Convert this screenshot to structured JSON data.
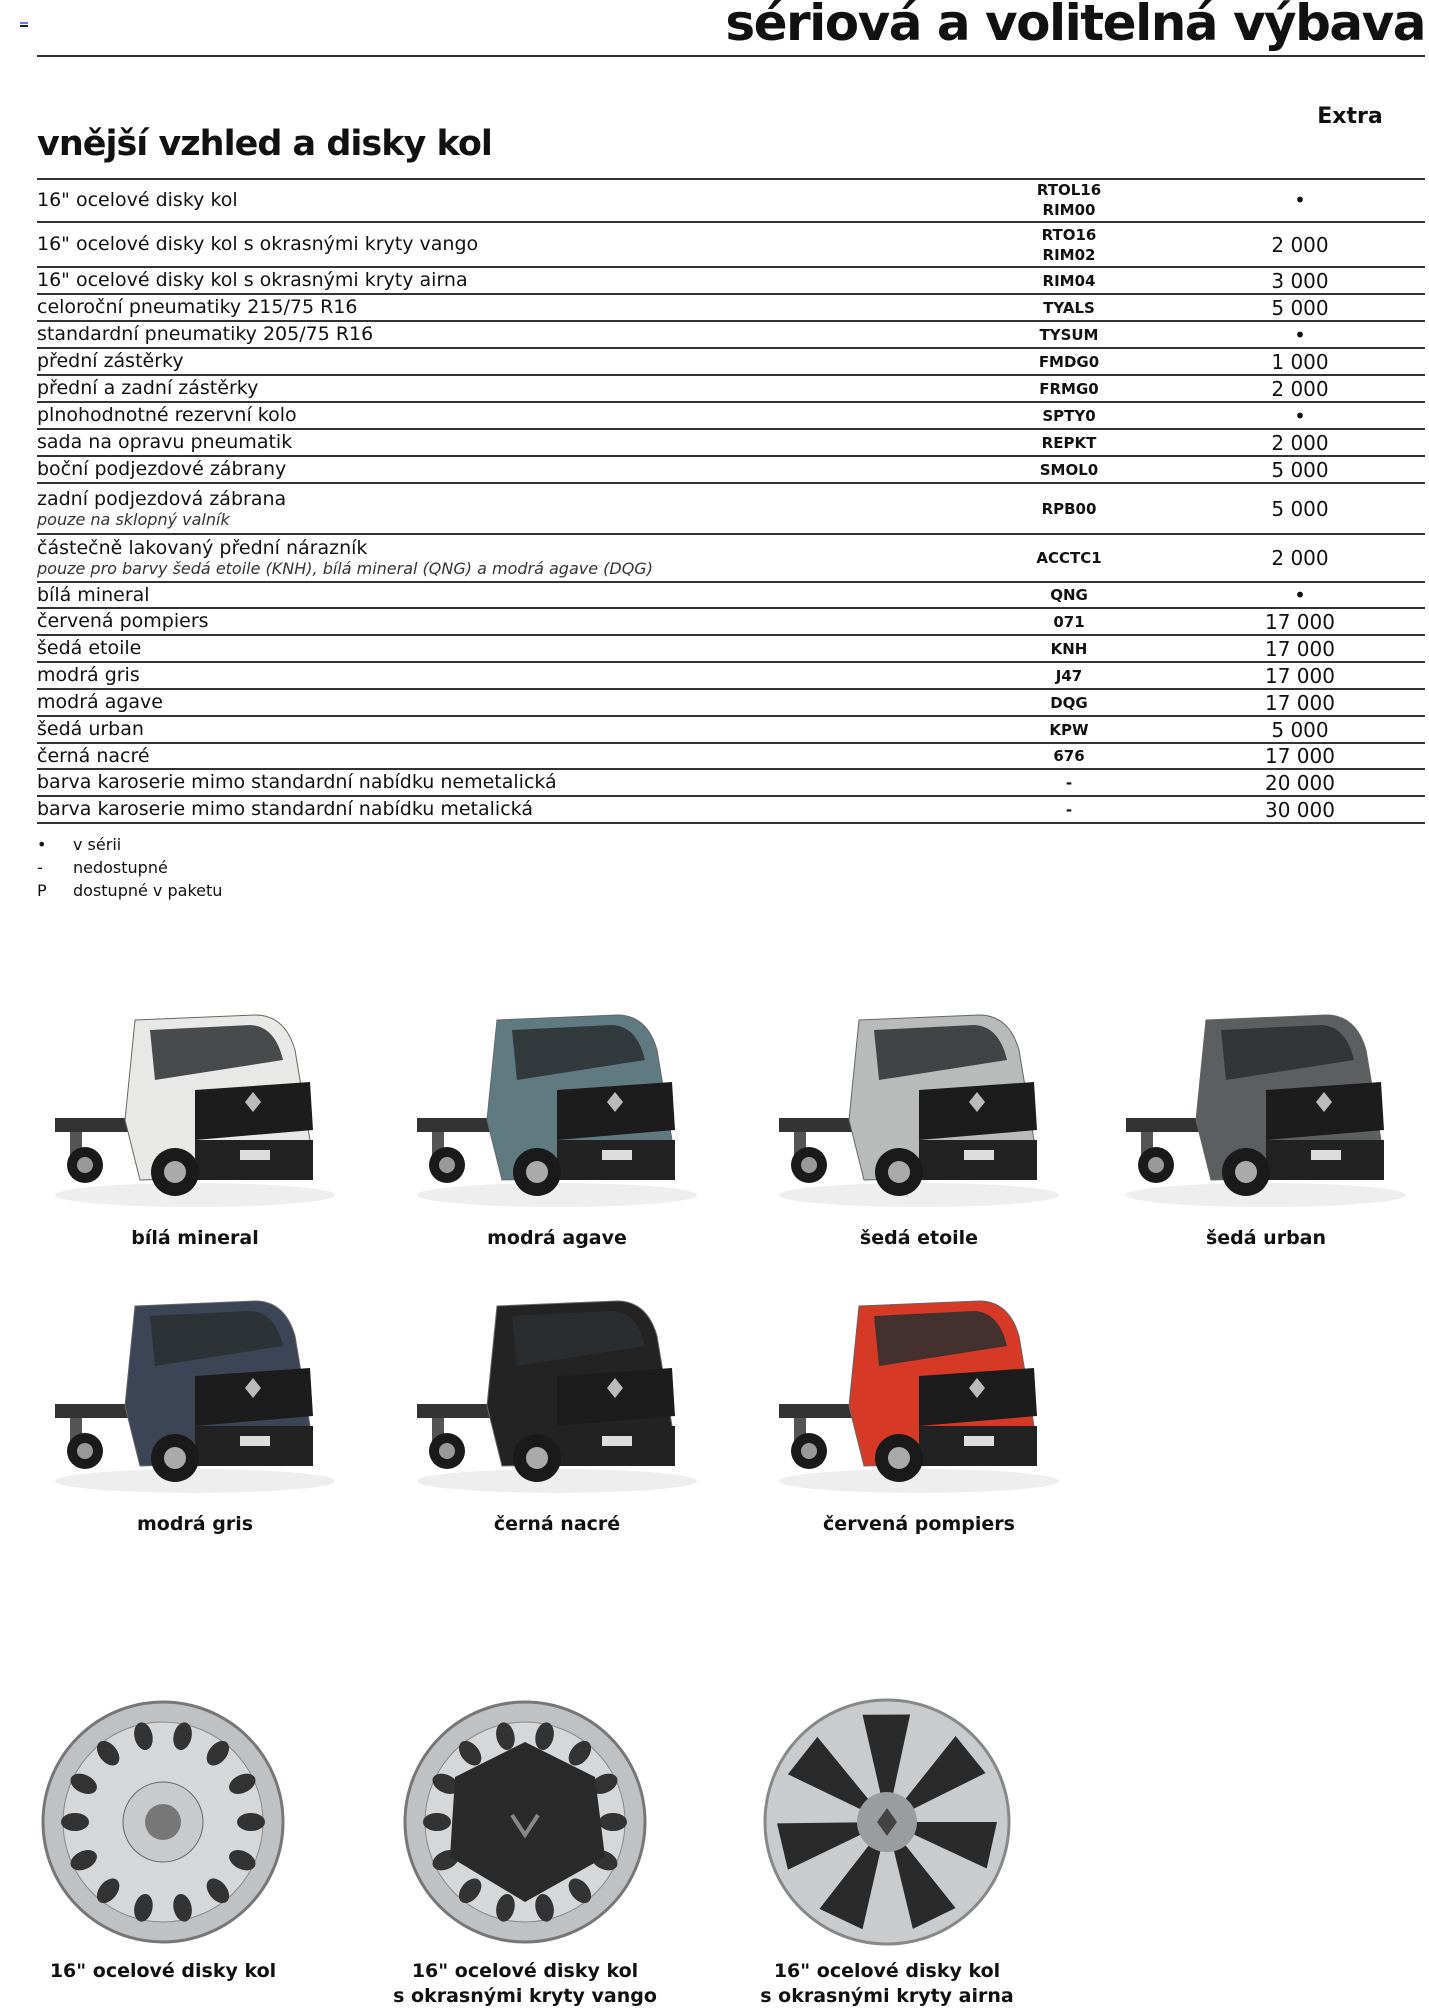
{
  "header": {
    "title": "sériová a volitelná výbava"
  },
  "section": {
    "title": "vnější vzhled a disky kol",
    "column_header": "Extra"
  },
  "rows": [
    {
      "label": "16\" ocelové disky kol",
      "code": "RTOL16\nRIM00",
      "price": "•"
    },
    {
      "label": "16\" ocelové disky kol s okrasnými kryty vango",
      "code": "RTO16\nRIM02",
      "price": "2 000"
    },
    {
      "label": "16\" ocelové disky kol s okrasnými kryty airna",
      "code": "RIM04",
      "price": "3 000"
    },
    {
      "label": "celoroční pneumatiky 215/75 R16",
      "code": "TYALS",
      "price": "5 000"
    },
    {
      "label": "standardní pneumatiky 205/75 R16",
      "code": "TYSUM",
      "price": "•"
    },
    {
      "label": "přední zástěrky",
      "code": "FMDG0",
      "price": "1 000"
    },
    {
      "label": "přední a zadní zástěrky",
      "code": "FRMG0",
      "price": "2 000"
    },
    {
      "label": "plnohodnotné rezervní kolo",
      "code": "SPTY0",
      "price": "•"
    },
    {
      "label": "sada na opravu pneumatik",
      "code": "REPKT",
      "price": "2 000"
    },
    {
      "label": "boční podjezdové zábrany",
      "code": "SMOL0",
      "price": "5 000"
    },
    {
      "label": "zadní podjezdová zábrana",
      "note": "pouze na sklopný valník",
      "code": "RPB00",
      "price": "5 000"
    },
    {
      "label": "částečně lakovaný přední nárazník",
      "note": "pouze pro barvy šedá etoile (KNH), bílá mineral (QNG) a modrá agave (DQG)",
      "code": "ACCTC1",
      "price": "2 000"
    },
    {
      "label": "bílá mineral",
      "code": "QNG",
      "price": "•"
    },
    {
      "label": "červená pompiers",
      "code": "071",
      "price": "17 000"
    },
    {
      "label": "šedá etoile",
      "code": "KNH",
      "price": "17 000"
    },
    {
      "label": "modrá gris",
      "code": "J47",
      "price": "17 000"
    },
    {
      "label": "modrá agave",
      "code": "DQG",
      "price": "17 000"
    },
    {
      "label": "šedá urban",
      "code": "KPW",
      "price": "5 000"
    },
    {
      "label": "černá nacré",
      "code": "676",
      "price": "17 000"
    },
    {
      "label": "barva karoserie mimo standardní nabídku nemetalická",
      "code": "-",
      "price": "20 000"
    },
    {
      "label": "barva karoserie mimo standardní nabídku metalická",
      "code": "-",
      "price": "30 000"
    }
  ],
  "legend": [
    {
      "symbol": "•",
      "text": "v sérii"
    },
    {
      "symbol": "-",
      "text": "nedostupné"
    },
    {
      "symbol": "P",
      "text": "dostupné v paketu"
    }
  ],
  "colors_gallery": [
    {
      "name": "bílá mineral",
      "color": "#e8e8e6"
    },
    {
      "name": "modrá agave",
      "color": "#5f7a80"
    },
    {
      "name": "šedá etoile",
      "color": "#b9bbbb"
    },
    {
      "name": "šedá urban",
      "color": "#5c5f60"
    },
    {
      "name": "modrá gris",
      "color": "#3b4555"
    },
    {
      "name": "černá nacré",
      "color": "#232323"
    },
    {
      "name": "červená pompiers",
      "color": "#d63a26"
    }
  ],
  "wheels": [
    {
      "line1": "16\" ocelové disky kol",
      "line2": ""
    },
    {
      "line1": "16\" ocelové disky kol",
      "line2": "s okrasnými kryty vango"
    },
    {
      "line1": "16\" ocelové disky kol",
      "line2": "s okrasnými kryty airna"
    }
  ]
}
